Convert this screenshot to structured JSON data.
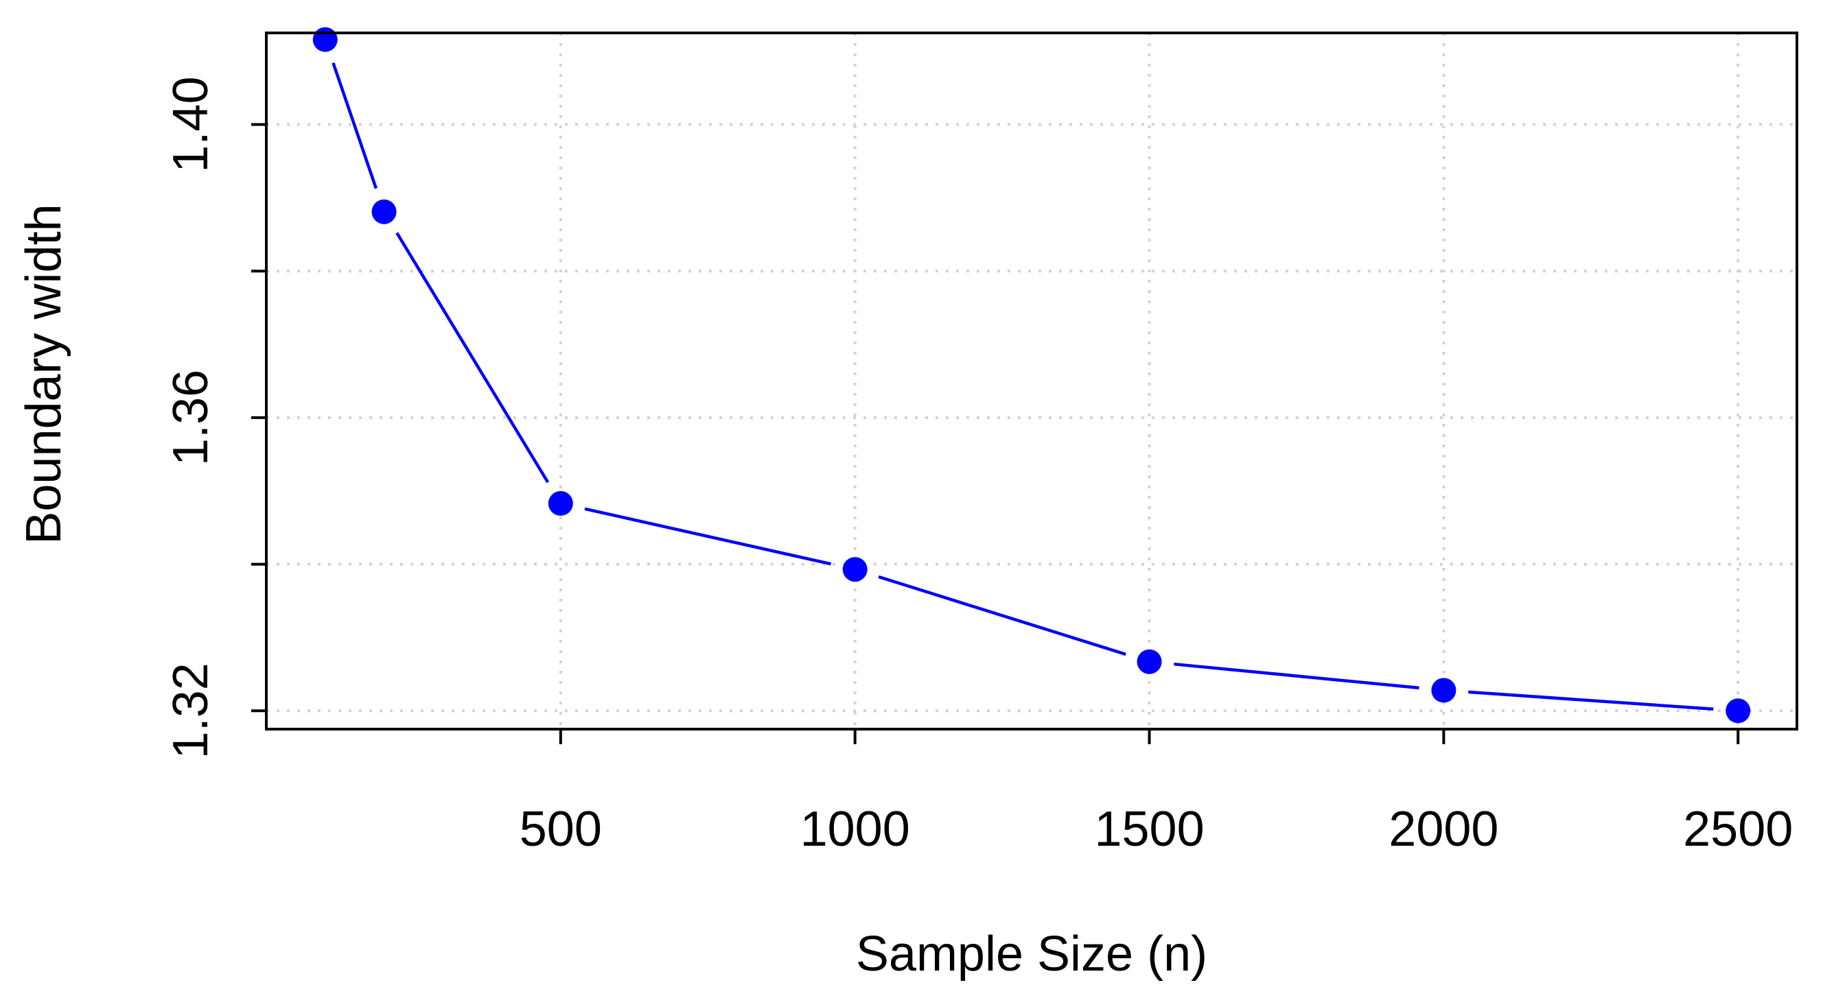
{
  "chart_data": {
    "type": "line",
    "title": "",
    "xlabel": "Sample Size (n)",
    "ylabel": "Boundary width",
    "x_ticks": [
      500,
      1000,
      1500,
      2000,
      2500
    ],
    "y_ticks": [
      1.32,
      1.36,
      1.4
    ],
    "y_tick_labels": [
      "1.32",
      "1.36",
      "1.40"
    ],
    "xlim": [
      0,
      2600
    ],
    "ylim": [
      1.3175,
      1.4125
    ],
    "grid": true,
    "series": [
      {
        "x": [
          100,
          200,
          500,
          1000,
          1500,
          2000,
          2500
        ],
        "y": [
          1.4116,
          1.3881,
          1.3483,
          1.3393,
          1.3267,
          1.3228,
          1.32
        ],
        "color": "#0000ff",
        "marker": "circle"
      }
    ]
  }
}
